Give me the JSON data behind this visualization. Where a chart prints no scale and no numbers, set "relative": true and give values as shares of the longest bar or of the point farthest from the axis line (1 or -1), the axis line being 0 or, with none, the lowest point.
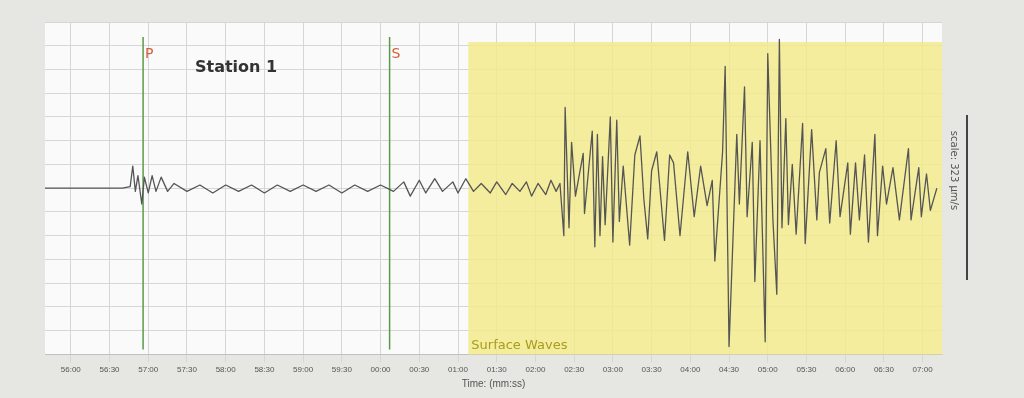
{
  "chart_data": {
    "type": "line",
    "title": "Station 1",
    "xlabel": "Time: (mm:ss)",
    "relative": true,
    "grid": true,
    "legend": false,
    "marker": "none",
    "line_style": "solid",
    "xlim": [
      "--01-01T13:55:40",
      "--01-01T14:07:15"
    ],
    "xticks": [
      {
        "value": "--01-01T13:56:00",
        "label": "56:00"
      },
      {
        "value": "--01-01T13:56:30",
        "label": "56:30"
      },
      {
        "value": "--01-01T13:57:00",
        "label": "57:00"
      },
      {
        "value": "--01-01T13:57:30",
        "label": "57:30"
      },
      {
        "value": "--01-01T13:58:00",
        "label": "58:00"
      },
      {
        "value": "--01-01T13:58:30",
        "label": "58:30"
      },
      {
        "value": "--01-01T13:59:00",
        "label": "59:00"
      },
      {
        "value": "--01-01T13:59:30",
        "label": "59:30"
      },
      {
        "value": "--01-01T14:00:00",
        "label": "00:00"
      },
      {
        "value": "--01-01T14:00:30",
        "label": "00:30"
      },
      {
        "value": "--01-01T14:01:00",
        "label": "01:00"
      },
      {
        "value": "--01-01T14:01:30",
        "label": "01:30"
      },
      {
        "value": "--01-01T14:02:00",
        "label": "02:00"
      },
      {
        "value": "--01-01T14:02:30",
        "label": "02:30"
      },
      {
        "value": "--01-01T14:03:00",
        "label": "03:00"
      },
      {
        "value": "--01-01T14:03:30",
        "label": "03:30"
      },
      {
        "value": "--01-01T14:04:00",
        "label": "04:00"
      },
      {
        "value": "--01-01T14:04:30",
        "label": "04:30"
      },
      {
        "value": "--01-01T14:05:00",
        "label": "05:00"
      },
      {
        "value": "--01-01T14:05:30",
        "label": "05:30"
      },
      {
        "value": "--01-01T14:06:00",
        "label": "06:00"
      },
      {
        "value": "--01-01T14:06:30",
        "label": "06:30"
      },
      {
        "value": "--01-01T14:07:00",
        "label": "07:00"
      }
    ],
    "ref_lines": [
      {
        "axis": "x",
        "value": "--01-01T13:56:56",
        "label": "P",
        "color": "#5a9a4a"
      },
      {
        "axis": "x",
        "value": "--01-01T14:00:07",
        "label": "S",
        "color": "#5a9a4a"
      }
    ],
    "bands": [
      {
        "axis": "x",
        "from": "--01-01T14:01:08",
        "to": "--01-01T14:07:15",
        "label": "Surface Waves",
        "color": "#f2ea8c"
      }
    ],
    "annotations": [
      "scale: 323 μm/s"
    ],
    "series": [
      {
        "color": "#555555",
        "x": [
          "--01-01T13:55:40",
          "--01-01T13:56:40",
          "--01-01T13:56:46",
          "--01-01T13:56:48",
          "--01-01T13:56:50",
          "--01-01T13:56:52",
          "--01-01T13:56:55",
          "--01-01T13:56:57",
          "--01-01T13:57:00",
          "--01-01T13:57:03",
          "--01-01T13:57:06",
          "--01-01T13:57:10",
          "--01-01T13:57:15",
          "--01-01T13:57:20",
          "--01-01T13:57:30",
          "--01-01T13:57:40",
          "--01-01T13:57:50",
          "--01-01T13:58:00",
          "--01-01T13:58:10",
          "--01-01T13:58:20",
          "--01-01T13:58:30",
          "--01-01T13:58:40",
          "--01-01T13:58:50",
          "--01-01T13:59:00",
          "--01-01T13:59:10",
          "--01-01T13:59:20",
          "--01-01T13:59:30",
          "--01-01T13:59:40",
          "--01-01T13:59:50",
          "--01-01T14:00:00",
          "--01-01T14:00:10",
          "--01-01T14:00:18",
          "--01-01T14:00:23",
          "--01-01T14:00:30",
          "--01-01T14:00:35",
          "--01-01T14:00:42",
          "--01-01T14:00:48",
          "--01-01T14:00:56",
          "--01-01T14:01:00",
          "--01-01T14:01:06",
          "--01-01T14:01:12",
          "--01-01T14:01:18",
          "--01-01T14:01:25",
          "--01-01T14:01:30",
          "--01-01T14:01:37",
          "--01-01T14:01:42",
          "--01-01T14:01:48",
          "--01-01T14:01:53",
          "--01-01T14:01:57",
          "--01-01T14:02:02",
          "--01-01T14:02:08",
          "--01-01T14:02:12",
          "--01-01T14:02:16",
          "--01-01T14:02:19",
          "--01-01T14:02:22",
          "--01-01T14:02:23",
          "--01-01T14:02:26",
          "--01-01T14:02:28",
          "--01-01T14:02:31",
          "--01-01T14:02:37",
          "--01-01T14:02:38",
          "--01-01T14:02:44",
          "--01-01T14:02:46",
          "--01-01T14:02:48",
          "--01-01T14:02:50",
          "--01-01T14:02:52",
          "--01-01T14:02:54",
          "--01-01T14:02:58",
          "--01-01T14:03:00",
          "--01-01T14:03:03",
          "--01-01T14:03:05",
          "--01-01T14:03:08",
          "--01-01T14:03:13",
          "--01-01T14:03:17",
          "--01-01T14:03:21",
          "--01-01T14:03:24",
          "--01-01T14:03:27",
          "--01-01T14:03:30",
          "--01-01T14:03:34",
          "--01-01T14:03:40",
          "--01-01T14:03:44",
          "--01-01T14:03:47",
          "--01-01T14:03:52",
          "--01-01T14:03:58",
          "--01-01T14:04:03",
          "--01-01T14:04:08",
          "--01-01T14:04:13",
          "--01-01T14:04:17",
          "--01-01T14:04:19",
          "--01-01T14:04:25",
          "--01-01T14:04:27",
          "--01-01T14:04:30",
          "--01-01T14:04:36",
          "--01-01T14:04:38",
          "--01-01T14:04:42",
          "--01-01T14:04:44",
          "--01-01T14:04:48",
          "--01-01T14:04:50",
          "--01-01T14:04:54",
          "--01-01T14:04:58",
          "--01-01T14:05:00",
          "--01-01T14:05:04",
          "--01-01T14:05:07",
          "--01-01T14:05:09",
          "--01-01T14:05:11",
          "--01-01T14:05:14",
          "--01-01T14:05:16",
          "--01-01T14:05:19",
          "--01-01T14:05:22",
          "--01-01T14:05:27",
          "--01-01T14:05:29",
          "--01-01T14:05:34",
          "--01-01T14:05:38",
          "--01-01T14:05:40",
          "--01-01T14:05:45",
          "--01-01T14:05:48",
          "--01-01T14:05:53",
          "--01-01T14:05:56",
          "--01-01T14:06:02",
          "--01-01T14:06:04",
          "--01-01T14:06:08",
          "--01-01T14:06:11",
          "--01-01T14:06:15",
          "--01-01T14:06:18",
          "--01-01T14:06:23",
          "--01-01T14:06:25",
          "--01-01T14:06:29",
          "--01-01T14:06:32",
          "--01-01T14:06:37",
          "--01-01T14:06:42",
          "--01-01T14:06:49",
          "--01-01T14:06:51",
          "--01-01T14:06:57",
          "--01-01T14:06:59",
          "--01-01T14:07:03",
          "--01-01T14:07:06",
          "--01-01T14:07:11"
        ],
        "values": [
          0,
          0,
          0.01,
          0.14,
          -0.02,
          0.08,
          -0.1,
          0.07,
          -0.03,
          0.08,
          -0.02,
          0.07,
          -0.02,
          0.03,
          -0.02,
          0.02,
          -0.03,
          0.02,
          -0.02,
          0.02,
          -0.03,
          0.02,
          -0.02,
          0.02,
          -0.02,
          0.02,
          -0.03,
          0.02,
          -0.02,
          0.02,
          -0.02,
          0.04,
          -0.05,
          0.05,
          -0.03,
          0.06,
          -0.02,
          0.04,
          -0.03,
          0.06,
          -0.02,
          0.03,
          -0.03,
          0.04,
          -0.04,
          0.03,
          -0.02,
          0.04,
          -0.05,
          0.03,
          -0.04,
          0.05,
          -0.02,
          0.03,
          -0.3,
          0.51,
          -0.25,
          0.29,
          -0.05,
          0.22,
          -0.16,
          0.36,
          -0.37,
          0.34,
          -0.3,
          0.2,
          -0.23,
          0.45,
          -0.34,
          0.43,
          -0.21,
          0.14,
          -0.36,
          0.21,
          0.33,
          -0.07,
          -0.32,
          0.11,
          0.23,
          -0.33,
          0.21,
          0.16,
          -0.3,
          0.23,
          -0.18,
          0.14,
          -0.11,
          0.05,
          -0.46,
          0.23,
          0.77,
          -1,
          0.34,
          -0.1,
          0.64,
          -0.18,
          0.29,
          -0.59,
          0.3,
          -0.97,
          0.85,
          -0.2,
          -0.67,
          0.94,
          -0.25,
          0.44,
          -0.23,
          0.15,
          -0.29,
          0.41,
          -0.35,
          0.37,
          -0.2,
          0.1,
          0.25,
          -0.22,
          0.3,
          -0.18,
          0.16,
          -0.29,
          0.16,
          -0.2,
          0.21,
          -0.34,
          0.34,
          -0.3,
          0.14,
          -0.1,
          0.13,
          -0.2,
          0.25,
          -0.2,
          0.13,
          -0.18,
          0.09,
          -0.14,
          0
        ]
      }
    ]
  }
}
